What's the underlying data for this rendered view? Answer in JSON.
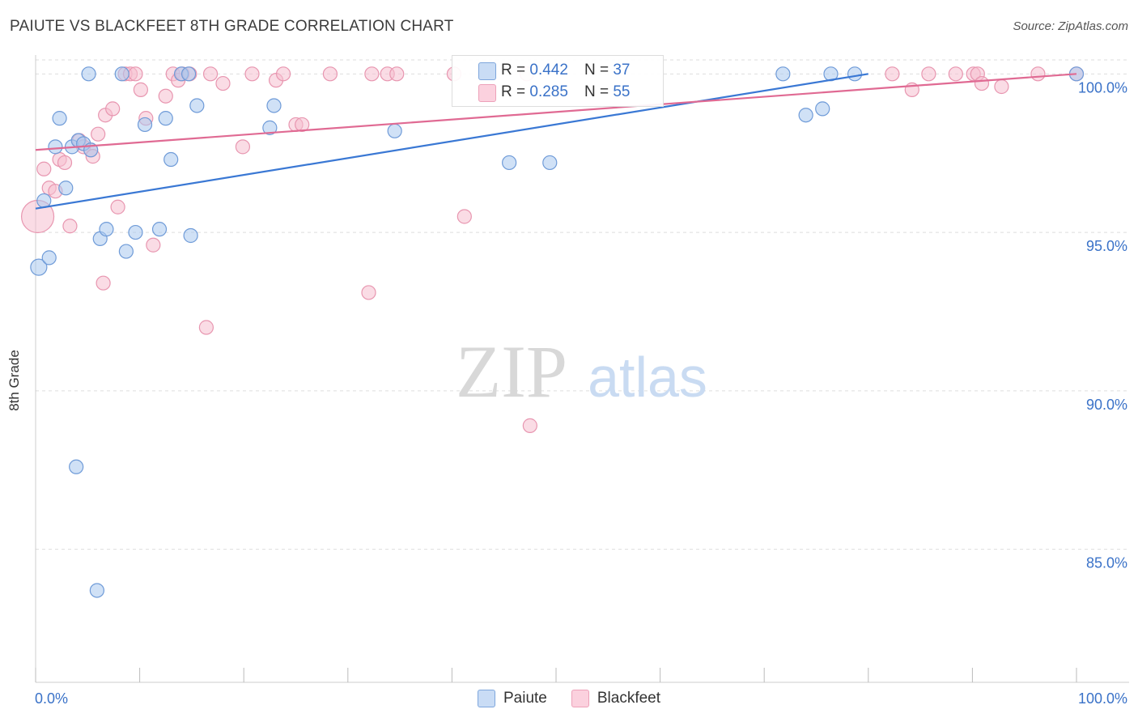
{
  "title": "PAIUTE VS BLACKFEET 8TH GRADE CORRELATION CHART",
  "source": "Source: ZipAtlas.com",
  "watermark": {
    "zip": "ZIP",
    "atlas": "atlas"
  },
  "colors": {
    "paiute_fill": "#aac8ef",
    "paiute_stroke": "#6f9bd8",
    "paiute_line": "#3a78d4",
    "blackfeet_fill": "#f6bfd0",
    "blackfeet_stroke": "#e896b0",
    "blackfeet_line": "#e06a93",
    "axis_text": "#3a72c8",
    "grid": "#dddddd"
  },
  "stats": [
    {
      "r_label": "R =",
      "r_value": "0.442",
      "n_label": "N =",
      "n_value": "37"
    },
    {
      "r_label": "R =",
      "r_value": "0.285",
      "n_label": "N =",
      "n_value": "55"
    }
  ],
  "chart_data": {
    "type": "scatter",
    "title": "PAIUTE VS BLACKFEET 8TH GRADE CORRELATION CHART",
    "xlabel": "",
    "ylabel": "8th Grade",
    "xlim": [
      0,
      100
    ],
    "ylim": [
      80.8,
      100.8
    ],
    "x_tick_labels": [
      "0.0%",
      "100.0%"
    ],
    "y_ticks": [
      100,
      95,
      90,
      85
    ],
    "y_tick_labels": [
      "100.0%",
      "95.0%",
      "90.0%",
      "85.0%"
    ],
    "legend": [
      "Paiute",
      "Blackfeet"
    ],
    "series": [
      {
        "name": "Paiute",
        "trend": {
          "x0": 0,
          "y0": 95.75,
          "x1": 80,
          "y1": 100.0
        },
        "points": [
          [
            0.3,
            93.9
          ],
          [
            1.3,
            94.2
          ],
          [
            0.8,
            96.0
          ],
          [
            1.9,
            97.7
          ],
          [
            2.3,
            98.6
          ],
          [
            2.9,
            96.4
          ],
          [
            3.5,
            97.7
          ],
          [
            4.1,
            97.9
          ],
          [
            4.6,
            97.8
          ],
          [
            5.3,
            97.6
          ],
          [
            5.1,
            100.0
          ],
          [
            6.2,
            94.8
          ],
          [
            6.8,
            95.1
          ],
          [
            8.3,
            100.0
          ],
          [
            8.7,
            94.4
          ],
          [
            9.6,
            95.0
          ],
          [
            10.5,
            98.4
          ],
          [
            11.9,
            95.1
          ],
          [
            12.5,
            98.6
          ],
          [
            13.0,
            97.3
          ],
          [
            14.0,
            100.0
          ],
          [
            14.7,
            100.0
          ],
          [
            14.9,
            94.9
          ],
          [
            15.5,
            99.0
          ],
          [
            22.5,
            98.3
          ],
          [
            22.9,
            99.0
          ],
          [
            34.5,
            98.2
          ],
          [
            45.5,
            97.2
          ],
          [
            49.4,
            97.2
          ],
          [
            71.8,
            100.0
          ],
          [
            74.0,
            98.7
          ],
          [
            75.6,
            98.9
          ],
          [
            76.4,
            100.0
          ],
          [
            78.7,
            100.0
          ],
          [
            3.9,
            87.6
          ],
          [
            5.9,
            83.7
          ],
          [
            100.0,
            100.0
          ]
        ]
      },
      {
        "name": "Blackfeet",
        "trend": {
          "x0": 0,
          "y0": 97.6,
          "x1": 100,
          "y1": 100.0
        },
        "points": [
          [
            0.2,
            95.5
          ],
          [
            0.8,
            97.0
          ],
          [
            1.3,
            96.4
          ],
          [
            1.9,
            96.3
          ],
          [
            2.3,
            97.3
          ],
          [
            2.8,
            97.2
          ],
          [
            3.3,
            95.2
          ],
          [
            4.2,
            97.9
          ],
          [
            4.6,
            97.7
          ],
          [
            5.3,
            97.6
          ],
          [
            5.5,
            97.4
          ],
          [
            6.0,
            98.1
          ],
          [
            6.5,
            93.4
          ],
          [
            6.7,
            98.7
          ],
          [
            7.4,
            98.9
          ],
          [
            7.9,
            95.8
          ],
          [
            8.6,
            100.0
          ],
          [
            9.1,
            100.0
          ],
          [
            9.6,
            100.0
          ],
          [
            10.1,
            99.5
          ],
          [
            10.6,
            98.6
          ],
          [
            11.3,
            94.6
          ],
          [
            12.5,
            99.3
          ],
          [
            13.2,
            100.0
          ],
          [
            13.7,
            99.8
          ],
          [
            14.1,
            100.0
          ],
          [
            14.8,
            100.0
          ],
          [
            16.4,
            92.0
          ],
          [
            16.8,
            100.0
          ],
          [
            18.0,
            99.7
          ],
          [
            19.9,
            97.7
          ],
          [
            20.8,
            100.0
          ],
          [
            23.1,
            99.8
          ],
          [
            23.8,
            100.0
          ],
          [
            25.0,
            98.4
          ],
          [
            25.6,
            98.4
          ],
          [
            28.3,
            100.0
          ],
          [
            32.0,
            93.1
          ],
          [
            32.3,
            100.0
          ],
          [
            33.8,
            100.0
          ],
          [
            34.7,
            100.0
          ],
          [
            40.2,
            100.0
          ],
          [
            41.2,
            95.5
          ],
          [
            47.2,
            100.0
          ],
          [
            47.5,
            88.9
          ],
          [
            82.3,
            100.0
          ],
          [
            84.2,
            99.5
          ],
          [
            85.8,
            100.0
          ],
          [
            88.4,
            100.0
          ],
          [
            90.1,
            100.0
          ],
          [
            90.5,
            100.0
          ],
          [
            90.9,
            99.7
          ],
          [
            92.8,
            99.6
          ],
          [
            96.3,
            100.0
          ],
          [
            100.0,
            100.0
          ]
        ]
      }
    ]
  },
  "legend_bottom": [
    {
      "label": "Paiute"
    },
    {
      "label": "Blackfeet"
    }
  ]
}
